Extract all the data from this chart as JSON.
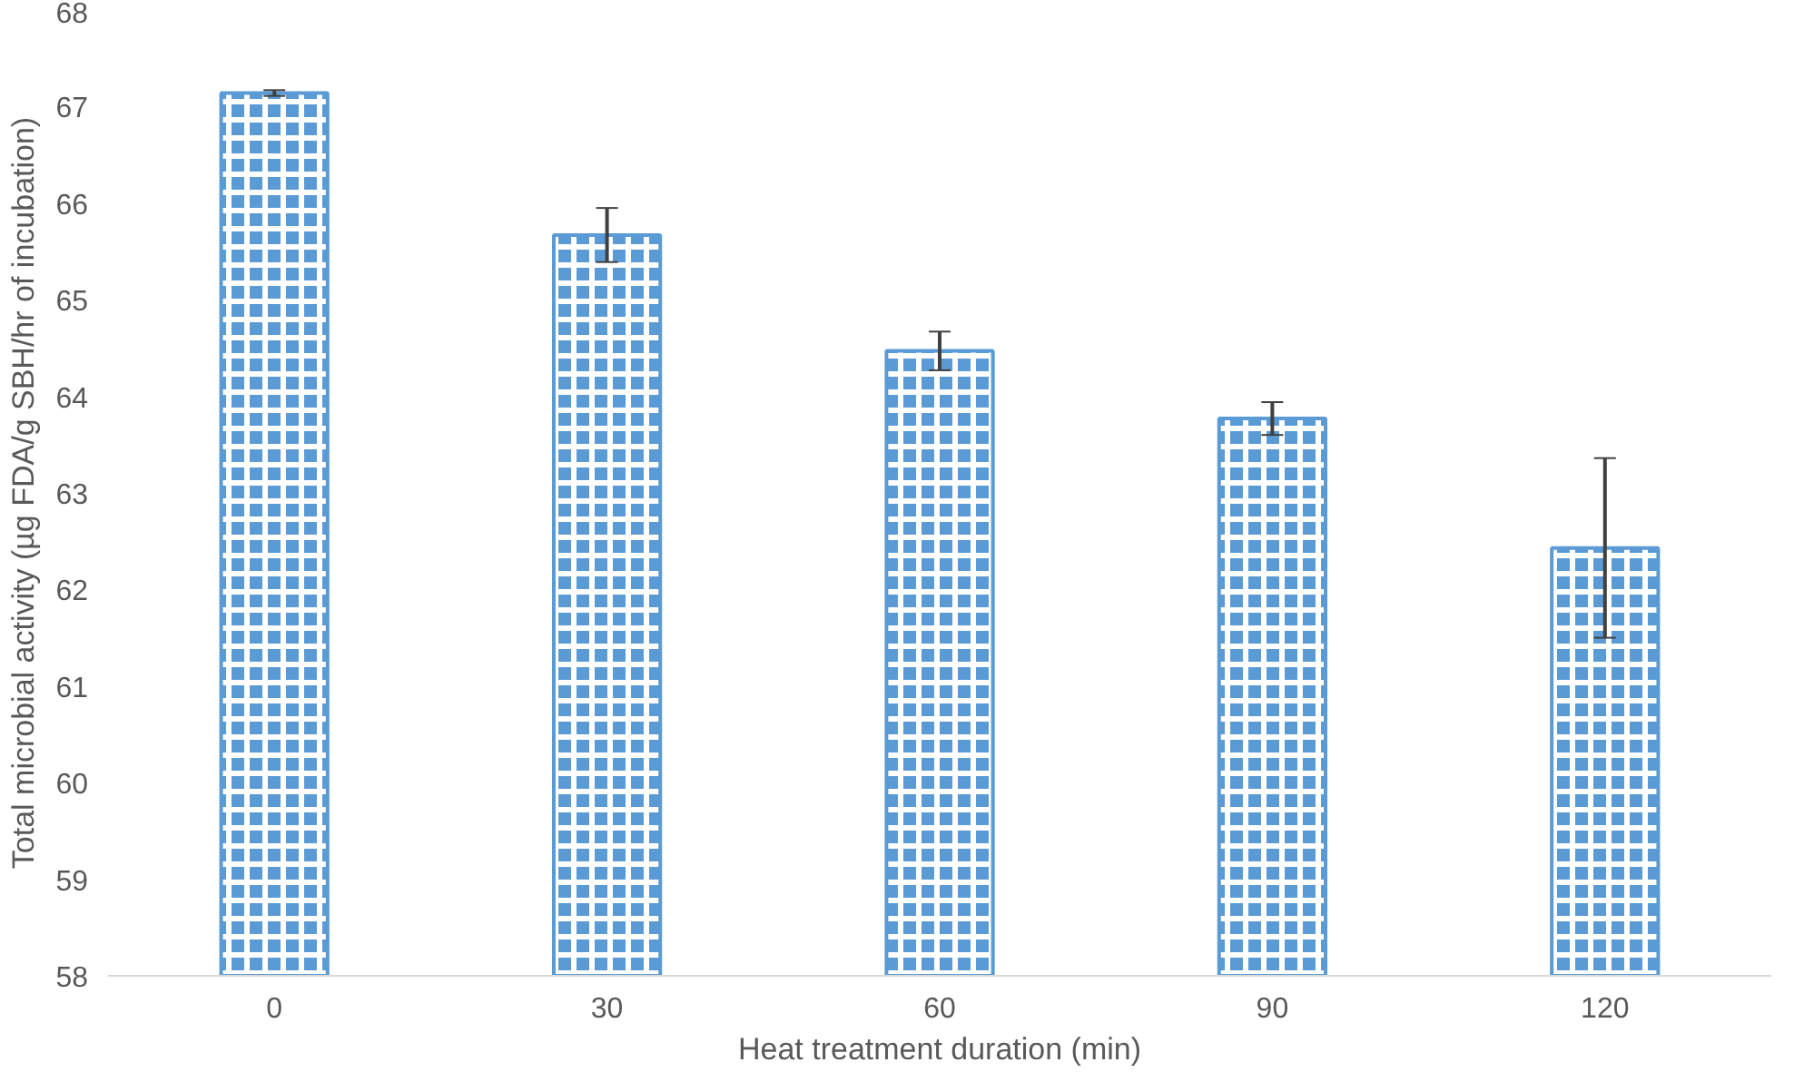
{
  "chart_data": {
    "type": "bar",
    "xlabel": "Heat treatment duration (min)",
    "ylabel": "Total microbial activity (µg FDA/g SBH/hr of incubation)",
    "categories": [
      "0",
      "30",
      "60",
      "90",
      "120"
    ],
    "values": [
      67.14,
      65.67,
      64.47,
      63.77,
      62.43
    ],
    "errors": [
      0.03,
      0.28,
      0.2,
      0.17,
      0.93
    ],
    "color": "#5b9bd5",
    "ylim": [
      58,
      68
    ],
    "yticks": [
      58,
      59,
      60,
      61,
      62,
      63,
      64,
      65,
      66,
      67,
      68
    ],
    "grid": false
  }
}
